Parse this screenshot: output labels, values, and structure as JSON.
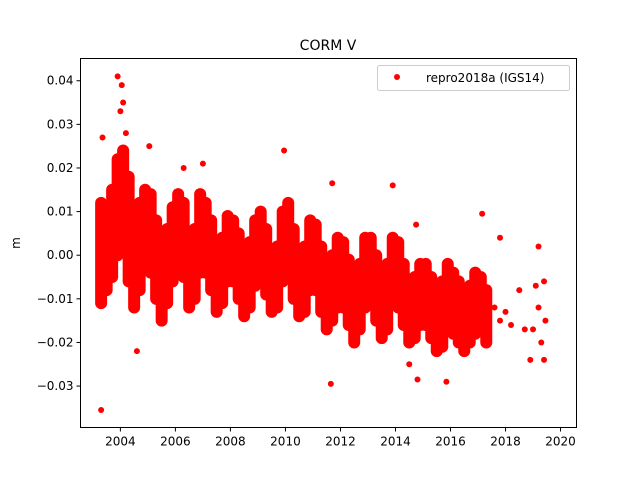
{
  "chart_data": {
    "type": "scatter",
    "title": "CORM V",
    "xlabel": "",
    "ylabel": "m",
    "xlim": [
      2002.55,
      2020.58
    ],
    "ylim": [
      -0.0395,
      0.0451
    ],
    "xticks": [
      2004,
      2006,
      2008,
      2010,
      2012,
      2014,
      2016,
      2018,
      2020
    ],
    "xtick_labels": [
      "2004",
      "2006",
      "2008",
      "2010",
      "2012",
      "2014",
      "2016",
      "2018",
      "2020"
    ],
    "yticks": [
      0.04,
      0.03,
      0.02,
      0.01,
      0.0,
      -0.01,
      -0.02,
      -0.03
    ],
    "ytick_labels": [
      "0.04",
      "0.03",
      "0.02",
      "0.01",
      "0.00",
      "−0.01",
      "−0.02",
      "−0.03"
    ],
    "grid": false,
    "legend": {
      "placement": "top-right",
      "entries": [
        "repro2018a (IGS14)"
      ]
    },
    "series": [
      {
        "name": "repro2018a (IGS14)",
        "color": "#ff0000",
        "marker": "circle",
        "sample_columns": [
          "year",
          "upper",
          "middle",
          "lower"
        ],
        "samples": [
          [
            2003.3,
            0.012,
            0.002,
            -0.011
          ],
          [
            2003.5,
            0.01,
            0.0,
            -0.008
          ],
          [
            2003.7,
            0.015,
            0.004,
            -0.005
          ],
          [
            2003.9,
            0.022,
            0.012,
            0.0
          ],
          [
            2004.1,
            0.024,
            0.01,
            0.001
          ],
          [
            2004.3,
            0.018,
            0.006,
            -0.006
          ],
          [
            2004.5,
            0.01,
            -0.002,
            -0.012
          ],
          [
            2004.7,
            0.012,
            0.002,
            -0.008
          ],
          [
            2004.9,
            0.015,
            0.006,
            -0.002
          ],
          [
            2005.1,
            0.014,
            0.004,
            -0.004
          ],
          [
            2005.3,
            0.008,
            -0.002,
            -0.01
          ],
          [
            2005.5,
            0.004,
            -0.005,
            -0.015
          ],
          [
            2005.7,
            0.006,
            -0.003,
            -0.011
          ],
          [
            2005.9,
            0.011,
            0.002,
            -0.006
          ],
          [
            2006.1,
            0.014,
            0.005,
            -0.003
          ],
          [
            2006.3,
            0.012,
            0.003,
            -0.005
          ],
          [
            2006.5,
            0.004,
            -0.004,
            -0.012
          ],
          [
            2006.7,
            0.006,
            -0.002,
            -0.01
          ],
          [
            2006.9,
            0.014,
            0.004,
            -0.004
          ],
          [
            2007.1,
            0.012,
            0.004,
            -0.004
          ],
          [
            2007.3,
            0.008,
            0.0,
            -0.008
          ],
          [
            2007.5,
            0.002,
            -0.006,
            -0.013
          ],
          [
            2007.7,
            0.004,
            -0.003,
            -0.011
          ],
          [
            2007.9,
            0.009,
            0.001,
            -0.006
          ],
          [
            2008.1,
            0.008,
            0.0,
            -0.006
          ],
          [
            2008.3,
            0.005,
            -0.003,
            -0.01
          ],
          [
            2008.5,
            0.001,
            -0.007,
            -0.014
          ],
          [
            2008.7,
            0.003,
            -0.004,
            -0.012
          ],
          [
            2008.9,
            0.008,
            0.0,
            -0.007
          ],
          [
            2009.1,
            0.01,
            0.002,
            -0.006
          ],
          [
            2009.3,
            0.006,
            -0.002,
            -0.009
          ],
          [
            2009.5,
            0.001,
            -0.006,
            -0.013
          ],
          [
            2009.7,
            0.002,
            -0.005,
            -0.012
          ],
          [
            2009.9,
            0.01,
            0.002,
            -0.006
          ],
          [
            2010.1,
            0.012,
            0.003,
            -0.005
          ],
          [
            2010.3,
            0.006,
            -0.002,
            -0.01
          ],
          [
            2010.5,
            0.0,
            -0.007,
            -0.014
          ],
          [
            2010.7,
            0.002,
            -0.006,
            -0.013
          ],
          [
            2010.9,
            0.008,
            0.0,
            -0.008
          ],
          [
            2011.1,
            0.007,
            -0.001,
            -0.008
          ],
          [
            2011.3,
            0.002,
            -0.006,
            -0.013
          ],
          [
            2011.5,
            -0.002,
            -0.01,
            -0.017
          ],
          [
            2011.7,
            0.0,
            -0.008,
            -0.015
          ],
          [
            2011.9,
            0.004,
            -0.004,
            -0.012
          ],
          [
            2012.1,
            0.003,
            -0.005,
            -0.012
          ],
          [
            2012.3,
            -0.001,
            -0.009,
            -0.016
          ],
          [
            2012.5,
            -0.004,
            -0.012,
            -0.02
          ],
          [
            2012.7,
            -0.002,
            -0.01,
            -0.017
          ],
          [
            2012.9,
            0.004,
            -0.004,
            -0.012
          ],
          [
            2013.1,
            0.004,
            -0.004,
            -0.011
          ],
          [
            2013.3,
            0.0,
            -0.008,
            -0.015
          ],
          [
            2013.5,
            -0.003,
            -0.011,
            -0.019
          ],
          [
            2013.7,
            -0.002,
            -0.009,
            -0.017
          ],
          [
            2013.9,
            0.004,
            -0.004,
            -0.011
          ],
          [
            2014.1,
            0.003,
            -0.005,
            -0.012
          ],
          [
            2014.3,
            -0.002,
            -0.01,
            -0.016
          ],
          [
            2014.5,
            -0.006,
            -0.013,
            -0.02
          ],
          [
            2014.7,
            -0.005,
            -0.012,
            -0.019
          ],
          [
            2014.9,
            -0.002,
            -0.009,
            -0.016
          ],
          [
            2015.1,
            -0.002,
            -0.009,
            -0.016
          ],
          [
            2015.3,
            -0.005,
            -0.012,
            -0.019
          ],
          [
            2015.5,
            -0.008,
            -0.015,
            -0.022
          ],
          [
            2015.7,
            -0.006,
            -0.013,
            -0.021
          ],
          [
            2015.9,
            -0.002,
            -0.01,
            -0.017
          ],
          [
            2016.1,
            -0.004,
            -0.011,
            -0.018
          ],
          [
            2016.3,
            -0.006,
            -0.013,
            -0.02
          ],
          [
            2016.5,
            -0.008,
            -0.015,
            -0.022
          ],
          [
            2016.7,
            -0.007,
            -0.014,
            -0.02
          ],
          [
            2016.9,
            -0.004,
            -0.011,
            -0.018
          ],
          [
            2017.1,
            -0.005,
            -0.011,
            -0.017
          ],
          [
            2017.3,
            -0.008,
            -0.014,
            -0.02
          ]
        ],
        "isolated_points": [
          [
            2017.6,
            -0.012
          ],
          [
            2017.8,
            -0.015
          ],
          [
            2018.0,
            -0.013
          ],
          [
            2018.2,
            -0.016
          ],
          [
            2018.5,
            -0.008
          ],
          [
            2018.7,
            -0.017
          ],
          [
            2018.9,
            -0.024
          ],
          [
            2019.0,
            -0.017
          ],
          [
            2019.1,
            -0.007
          ],
          [
            2019.2,
            -0.012
          ],
          [
            2019.3,
            -0.02
          ],
          [
            2019.4,
            -0.006
          ],
          [
            2019.4,
            -0.024
          ],
          [
            2019.45,
            -0.015
          ],
          [
            2003.3,
            -0.0355
          ],
          [
            2003.35,
            0.027
          ],
          [
            2003.9,
            0.041
          ],
          [
            2004.05,
            0.039
          ],
          [
            2004.1,
            0.035
          ],
          [
            2004.0,
            0.033
          ],
          [
            2004.2,
            0.028
          ],
          [
            2009.95,
            0.024
          ],
          [
            2011.65,
            -0.0295
          ],
          [
            2011.7,
            0.0165
          ],
          [
            2013.9,
            0.016
          ],
          [
            2014.75,
            0.007
          ],
          [
            2014.8,
            -0.0285
          ],
          [
            2015.85,
            -0.029
          ],
          [
            2017.15,
            0.0095
          ],
          [
            2017.8,
            0.004
          ],
          [
            2019.2,
            0.002
          ],
          [
            2014.5,
            -0.025
          ],
          [
            2004.6,
            -0.022
          ],
          [
            2007.0,
            0.021
          ],
          [
            2006.3,
            0.02
          ],
          [
            2005.05,
            0.025
          ]
        ]
      }
    ]
  }
}
